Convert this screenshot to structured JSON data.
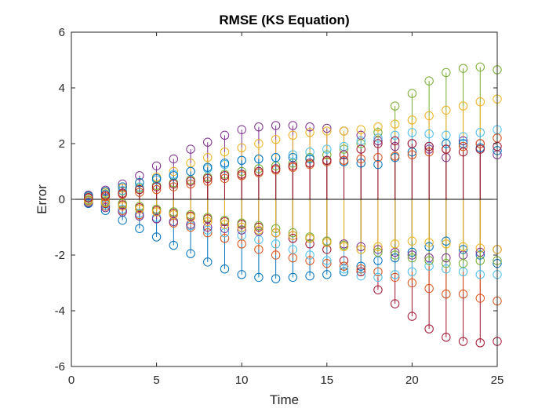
{
  "chart_data": {
    "type": "scatter",
    "style": "stem plot of error samples per time step",
    "title": "RMSE (KS Equation)",
    "xlabel": "Time",
    "ylabel": "Error",
    "xlim": [
      0,
      25
    ],
    "ylim": [
      -6,
      6
    ],
    "xticks": [
      0,
      5,
      10,
      15,
      20,
      25
    ],
    "yticks": [
      -6,
      -4,
      -2,
      0,
      2,
      4,
      6
    ],
    "grid": false,
    "legend": "none",
    "zero_line": true,
    "x": [
      1,
      2,
      3,
      4,
      5,
      6,
      7,
      8,
      9,
      10,
      11,
      12,
      13,
      14,
      15,
      16,
      17,
      18,
      19,
      20,
      21,
      22,
      23,
      24,
      25
    ],
    "series": [
      {
        "color": "#7E2F8E",
        "values": [
          0.15,
          0.33,
          0.55,
          0.85,
          1.2,
          1.45,
          1.8,
          2.05,
          2.3,
          2.5,
          2.6,
          2.65,
          2.65,
          2.6,
          2.55,
          2.45,
          2.3,
          2.1,
          1.9,
          2.0,
          1.8,
          1.5,
          2.1,
          2.0,
          1.6
        ]
      },
      {
        "color": "#0072BD",
        "values": [
          -0.15,
          -0.4,
          -0.75,
          -1.05,
          -1.35,
          -1.65,
          -1.95,
          -2.25,
          -2.5,
          -2.7,
          -2.8,
          -2.85,
          -2.8,
          -2.75,
          -2.7,
          -2.6,
          -2.4,
          -2.2,
          -2.1,
          -1.9,
          -1.7,
          -1.5,
          -1.8,
          -2.0,
          -2.3
        ]
      },
      {
        "color": "#77AC30",
        "values": [
          0.05,
          0.2,
          0.3,
          0.4,
          0.5,
          0.6,
          0.7,
          0.8,
          0.9,
          1.0,
          1.1,
          1.2,
          1.3,
          1.5,
          1.6,
          1.8,
          2.0,
          2.4,
          3.35,
          3.8,
          4.25,
          4.55,
          4.7,
          4.75,
          4.65
        ]
      },
      {
        "color": "#A2142F",
        "values": [
          -0.05,
          -0.15,
          -0.2,
          -0.3,
          -0.4,
          -0.5,
          -0.6,
          -0.7,
          -0.8,
          -0.9,
          -1.0,
          -1.2,
          -1.4,
          -1.6,
          -1.8,
          -2.2,
          -2.6,
          -3.25,
          -3.75,
          -4.2,
          -4.65,
          -4.95,
          -5.1,
          -5.15,
          -5.1
        ]
      },
      {
        "color": "#EDB120",
        "values": [
          0.1,
          0.25,
          0.4,
          0.6,
          0.8,
          1.0,
          1.3,
          1.5,
          1.7,
          1.85,
          2.0,
          2.15,
          2.3,
          2.4,
          2.45,
          2.45,
          2.5,
          2.6,
          2.7,
          2.85,
          3.0,
          3.2,
          3.35,
          3.5,
          3.6
        ]
      },
      {
        "color": "#D95319",
        "values": [
          -0.1,
          -0.25,
          -0.4,
          -0.55,
          -0.7,
          -0.85,
          -1.0,
          -1.2,
          -1.4,
          -1.6,
          -1.8,
          -2.0,
          -2.1,
          -2.2,
          -2.3,
          -2.4,
          -2.5,
          -2.6,
          -2.8,
          -3.0,
          -3.2,
          -3.4,
          -3.4,
          -3.55,
          -3.65
        ]
      },
      {
        "color": "#4DBEEE",
        "values": [
          0.08,
          0.18,
          0.32,
          0.45,
          0.7,
          0.9,
          1.0,
          1.1,
          1.25,
          1.4,
          1.45,
          1.5,
          1.6,
          1.7,
          1.8,
          1.9,
          2.1,
          2.2,
          2.3,
          2.4,
          2.35,
          2.3,
          2.25,
          2.4,
          2.5
        ]
      },
      {
        "color": "#4DBEEE",
        "values": [
          -0.08,
          -0.2,
          -0.35,
          -0.5,
          -0.65,
          -0.8,
          -0.95,
          -1.1,
          -1.2,
          -1.3,
          -1.45,
          -1.6,
          -1.8,
          -2.0,
          -2.2,
          -2.5,
          -2.75,
          -2.8,
          -2.7,
          -2.6,
          -2.4,
          -2.5,
          -2.6,
          -2.7,
          -2.7
        ]
      },
      {
        "color": "#0072BD",
        "values": [
          0.12,
          0.28,
          0.45,
          0.6,
          0.75,
          0.85,
          1.0,
          1.15,
          1.3,
          1.4,
          1.45,
          1.5,
          1.5,
          1.45,
          1.4,
          1.35,
          1.3,
          1.25,
          1.5,
          1.7,
          1.9,
          2.0,
          2.0,
          1.85,
          1.75
        ]
      },
      {
        "color": "#7E2F8E",
        "values": [
          -0.12,
          -0.3,
          -0.45,
          -0.6,
          -0.7,
          -0.8,
          -0.9,
          -1.0,
          -1.05,
          -1.1,
          -1.15,
          -1.2,
          -1.3,
          -1.4,
          -1.5,
          -1.6,
          -1.7,
          -1.8,
          -1.9,
          -2.0,
          -2.1,
          -2.1,
          -2.0,
          -1.9,
          -1.8
        ]
      },
      {
        "color": "#77AC30",
        "values": [
          -0.02,
          -0.08,
          -0.15,
          -0.25,
          -0.35,
          -0.45,
          -0.55,
          -0.65,
          -0.75,
          -0.85,
          -0.95,
          -1.05,
          -1.2,
          -1.35,
          -1.5,
          -1.65,
          -1.8,
          -1.9,
          -2.0,
          -2.1,
          -2.2,
          -2.3,
          -2.3,
          -2.2,
          -2.2
        ]
      },
      {
        "color": "#EDB120",
        "values": [
          -0.06,
          -0.12,
          -0.25,
          -0.35,
          -0.45,
          -0.55,
          -0.65,
          -0.8,
          -0.9,
          -1.0,
          -1.1,
          -1.2,
          -1.3,
          -1.4,
          -1.55,
          -1.7,
          -1.8,
          -1.7,
          -1.6,
          -1.5,
          -1.55,
          -1.6,
          -1.7,
          -1.75,
          -1.8
        ]
      },
      {
        "color": "#D95319",
        "values": [
          0.04,
          0.1,
          0.18,
          0.25,
          0.35,
          0.45,
          0.55,
          0.65,
          0.75,
          0.85,
          0.95,
          1.05,
          1.15,
          1.25,
          1.35,
          1.4,
          1.45,
          1.5,
          1.55,
          1.6,
          1.7,
          1.8,
          1.9,
          2.0,
          2.2
        ]
      },
      {
        "color": "#A2142F",
        "values": [
          0.06,
          0.15,
          0.22,
          0.35,
          0.45,
          0.55,
          0.65,
          0.75,
          0.85,
          0.9,
          1.0,
          1.1,
          1.2,
          1.3,
          1.4,
          1.6,
          1.8,
          2.0,
          2.1,
          2.0,
          1.9,
          1.8,
          1.7,
          1.8,
          1.9
        ]
      }
    ]
  }
}
